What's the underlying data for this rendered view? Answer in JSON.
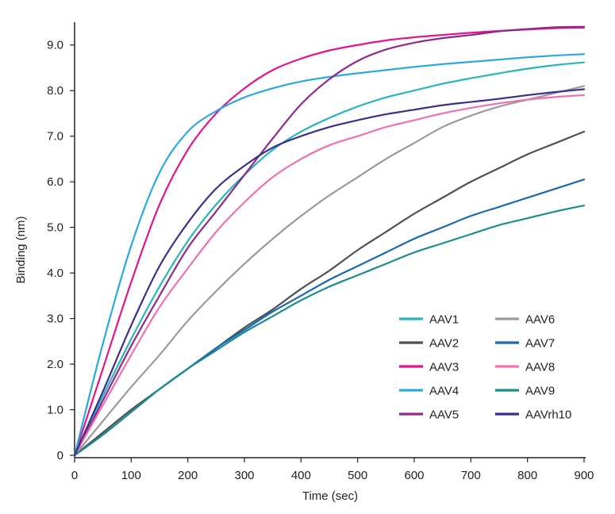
{
  "chart_data": {
    "type": "line",
    "title": "",
    "xlabel": "Time (sec)",
    "ylabel": "Binding (nm)",
    "xlim": [
      0,
      900
    ],
    "ylim": [
      0,
      9.5
    ],
    "xticks": [
      0,
      100,
      200,
      300,
      400,
      500,
      600,
      700,
      800,
      900
    ],
    "xtick_labels": [
      "0",
      "100",
      "200",
      "300",
      "400",
      "500",
      "600",
      "700",
      "800",
      "900"
    ],
    "yticks": [
      0,
      1,
      2,
      3,
      4,
      5,
      6,
      7,
      8,
      9
    ],
    "ytick_labels": [
      "0",
      "1.0",
      "2.0",
      "3.0",
      "4.0",
      "5.0",
      "6.0",
      "7.0",
      "8.0",
      "9.0"
    ],
    "grid": false,
    "legend_position": "lower-right",
    "x": [
      0,
      50,
      100,
      150,
      200,
      250,
      300,
      350,
      400,
      450,
      500,
      550,
      600,
      650,
      700,
      750,
      800,
      850,
      900
    ],
    "series": [
      {
        "name": "AAV1",
        "color": "#2bb5b8",
        "values": [
          0,
          1.3,
          2.55,
          3.7,
          4.7,
          5.5,
          6.15,
          6.7,
          7.1,
          7.4,
          7.65,
          7.85,
          8.0,
          8.15,
          8.27,
          8.38,
          8.48,
          8.56,
          8.62
        ]
      },
      {
        "name": "AAV2",
        "color": "#505050",
        "values": [
          0,
          0.5,
          1.0,
          1.45,
          1.9,
          2.35,
          2.8,
          3.2,
          3.65,
          4.05,
          4.5,
          4.9,
          5.3,
          5.65,
          6.0,
          6.3,
          6.6,
          6.85,
          7.1
        ]
      },
      {
        "name": "AAV3",
        "color": "#e0168a",
        "values": [
          0,
          1.9,
          3.8,
          5.5,
          6.7,
          7.5,
          8.05,
          8.45,
          8.7,
          8.88,
          9.0,
          9.1,
          9.17,
          9.22,
          9.27,
          9.31,
          9.34,
          9.37,
          9.38
        ]
      },
      {
        "name": "AAV4",
        "color": "#2ba8e0",
        "values": [
          0,
          2.45,
          4.6,
          6.2,
          7.1,
          7.55,
          7.85,
          8.05,
          8.2,
          8.3,
          8.38,
          8.45,
          8.52,
          8.58,
          8.63,
          8.68,
          8.73,
          8.77,
          8.8
        ]
      },
      {
        "name": "AAV5",
        "color": "#8e2a8e",
        "values": [
          0,
          1.2,
          2.4,
          3.5,
          4.55,
          5.35,
          6.15,
          6.95,
          7.7,
          8.25,
          8.65,
          8.9,
          9.05,
          9.15,
          9.22,
          9.3,
          9.35,
          9.39,
          9.4
        ]
      },
      {
        "name": "AAV6",
        "color": "#9a9a9a",
        "values": [
          0,
          0.75,
          1.5,
          2.2,
          2.95,
          3.6,
          4.2,
          4.75,
          5.25,
          5.7,
          6.1,
          6.5,
          6.85,
          7.2,
          7.45,
          7.65,
          7.8,
          7.95,
          8.1
        ]
      },
      {
        "name": "AAV7",
        "color": "#1a68b0",
        "values": [
          0,
          0.45,
          0.95,
          1.45,
          1.9,
          2.35,
          2.75,
          3.15,
          3.5,
          3.85,
          4.15,
          4.45,
          4.75,
          5.0,
          5.25,
          5.45,
          5.65,
          5.85,
          6.05
        ]
      },
      {
        "name": "AAV8",
        "color": "#ee70b0",
        "values": [
          0,
          1.1,
          2.2,
          3.25,
          4.1,
          4.9,
          5.55,
          6.1,
          6.5,
          6.8,
          7.0,
          7.2,
          7.35,
          7.5,
          7.62,
          7.72,
          7.8,
          7.86,
          7.9
        ]
      },
      {
        "name": "AAV9",
        "color": "#1e8c8c",
        "values": [
          0,
          0.45,
          0.95,
          1.45,
          1.9,
          2.3,
          2.7,
          3.05,
          3.4,
          3.7,
          3.95,
          4.2,
          4.45,
          4.65,
          4.85,
          5.05,
          5.2,
          5.35,
          5.48
        ]
      },
      {
        "name": "AAVrh10",
        "color": "#3c2f8a",
        "values": [
          0,
          1.4,
          2.85,
          4.15,
          5.1,
          5.85,
          6.35,
          6.75,
          7.0,
          7.2,
          7.35,
          7.48,
          7.58,
          7.68,
          7.75,
          7.82,
          7.9,
          7.97,
          8.03
        ]
      }
    ]
  }
}
